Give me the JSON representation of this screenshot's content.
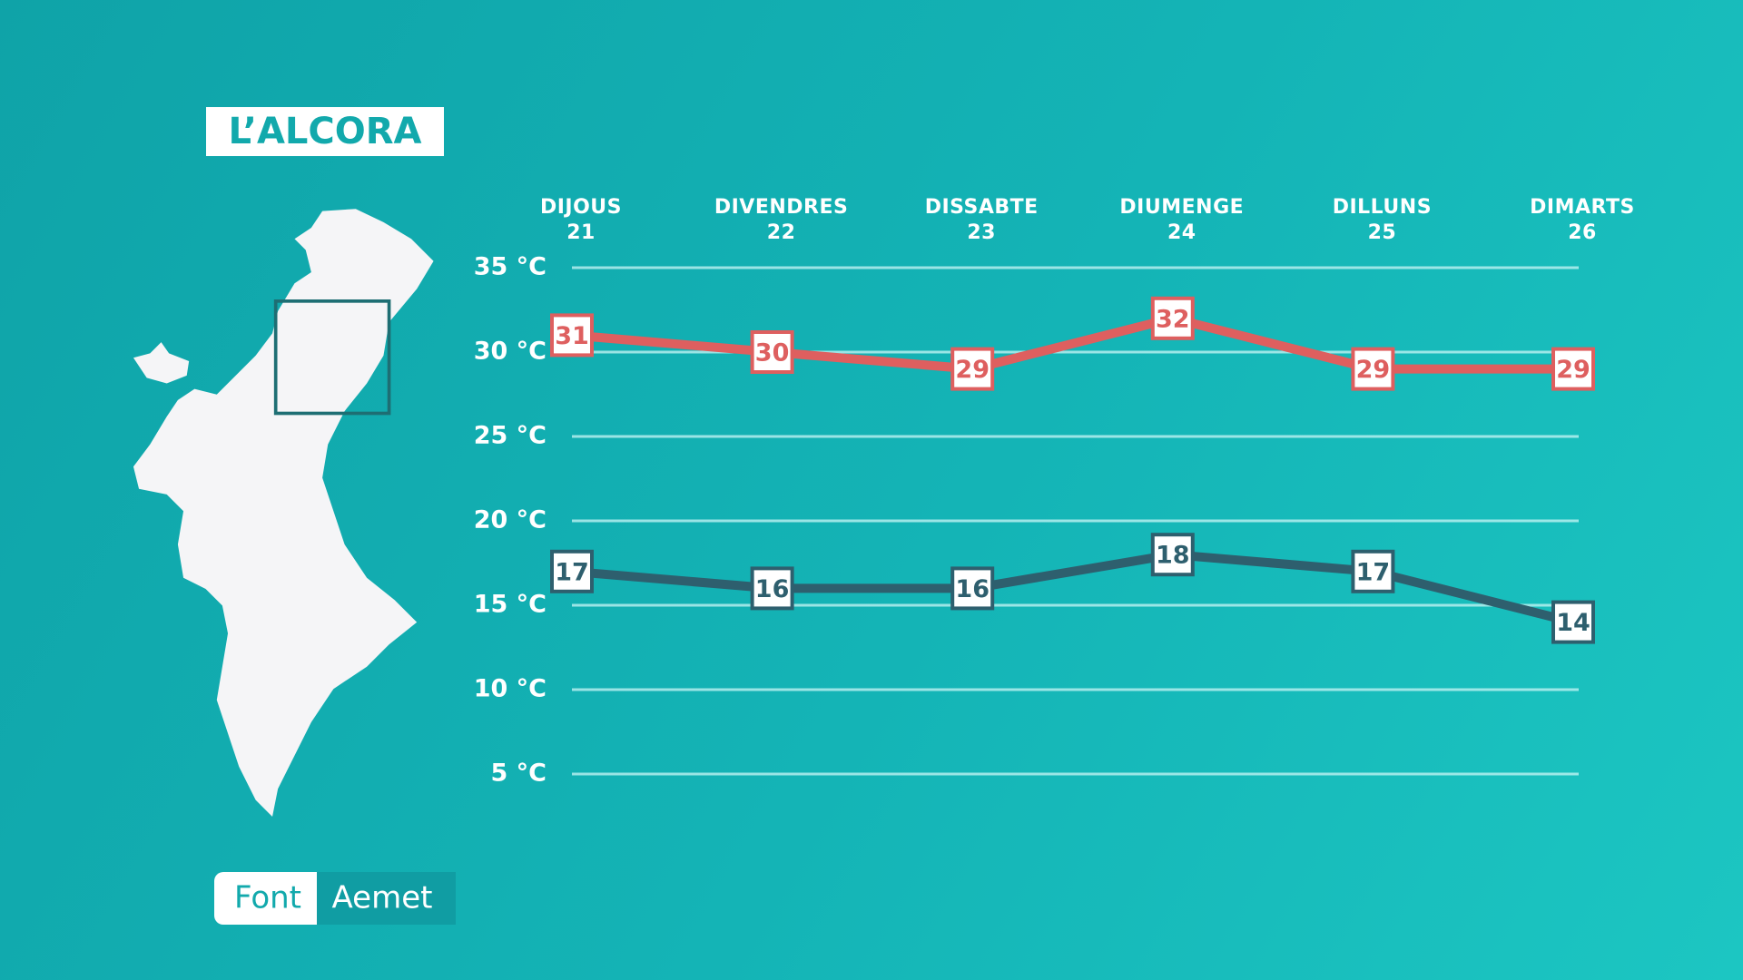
{
  "chart_data": {
    "type": "line",
    "title": "L’ALCORA",
    "categories": [
      "DIJOUS\n21",
      "DIVENDRES\n22",
      "DISSABTE\n23",
      "DIUMENGE\n24",
      "DILLUNS\n25",
      "DIMARTS\n26"
    ],
    "series": [
      {
        "color": "#de5f5f",
        "values": [
          31,
          30,
          29,
          32,
          29,
          29
        ]
      },
      {
        "color": "#2e5f6e",
        "values": [
          17,
          16,
          16,
          18,
          17,
          14
        ]
      }
    ],
    "ylim": [
      5,
      35
    ],
    "yticks": [
      {
        "value": 35,
        "label": "35 °C"
      },
      {
        "value": 30,
        "label": "30 °C"
      },
      {
        "value": 25,
        "label": "25 °C"
      },
      {
        "value": 20,
        "label": "20 °C"
      },
      {
        "value": 15,
        "label": "15 °C"
      },
      {
        "value": 10,
        "label": "10 °C"
      },
      {
        "value": 5,
        "label": "5 °C"
      }
    ],
    "grid": true,
    "source": {
      "label": "Font",
      "name": "Aemet"
    }
  }
}
